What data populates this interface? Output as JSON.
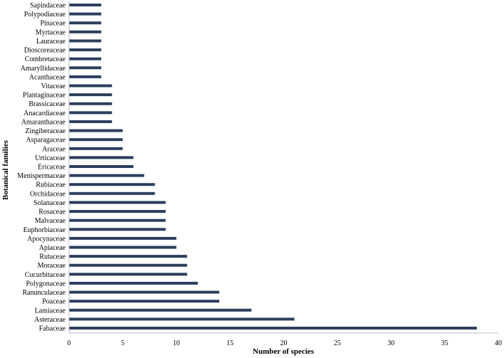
{
  "chart_data": {
    "type": "bar",
    "orientation": "horizontal",
    "title": "",
    "xlabel": "Number of species",
    "ylabel": "Botanical families",
    "xlim": [
      0,
      40
    ],
    "xticks": [
      "0",
      "5",
      "10",
      "15",
      "20",
      "25",
      "30",
      "35",
      "40"
    ],
    "grid": false,
    "legend": "none",
    "bar_color": "#2c3e5c",
    "categories": [
      "Sapindaceae",
      "Polypodiaceae",
      "Pinaceae",
      "Myrtaceae",
      "Lauraceae",
      "Dioscoreaceae",
      "Combretaceae",
      "Amaryllidaceae",
      "Acanthaceae",
      "Vitaceae",
      "Plantaginaceae",
      "Brassicaceae",
      "Anacardiaceae",
      "Amaranthaceae",
      "Zingiberaceae",
      "Asparagaceae",
      "Araceae",
      "Urticaceae",
      "Ericaceae",
      "Menispermaceae",
      "Rubiaceae",
      "Orchidaceae",
      "Solanaceae",
      "Rosaceae",
      "Malvaceae",
      "Euphorbiaceae",
      "Apocynaceae",
      "Apiaceae",
      "Rutaceae",
      "Moraceae",
      "Cucurbitaceae",
      "Polygonaceae",
      "Ranunculaceae",
      "Poaceae",
      "Lamiaceae",
      "Asteraceae",
      "Fabaceae"
    ],
    "values": [
      3,
      3,
      3,
      3,
      3,
      3,
      3,
      3,
      3,
      4,
      4,
      4,
      4,
      4,
      5,
      5,
      5,
      6,
      6,
      7,
      8,
      8,
      9,
      9,
      9,
      9,
      10,
      10,
      11,
      11,
      11,
      12,
      14,
      14,
      17,
      21,
      38
    ]
  }
}
